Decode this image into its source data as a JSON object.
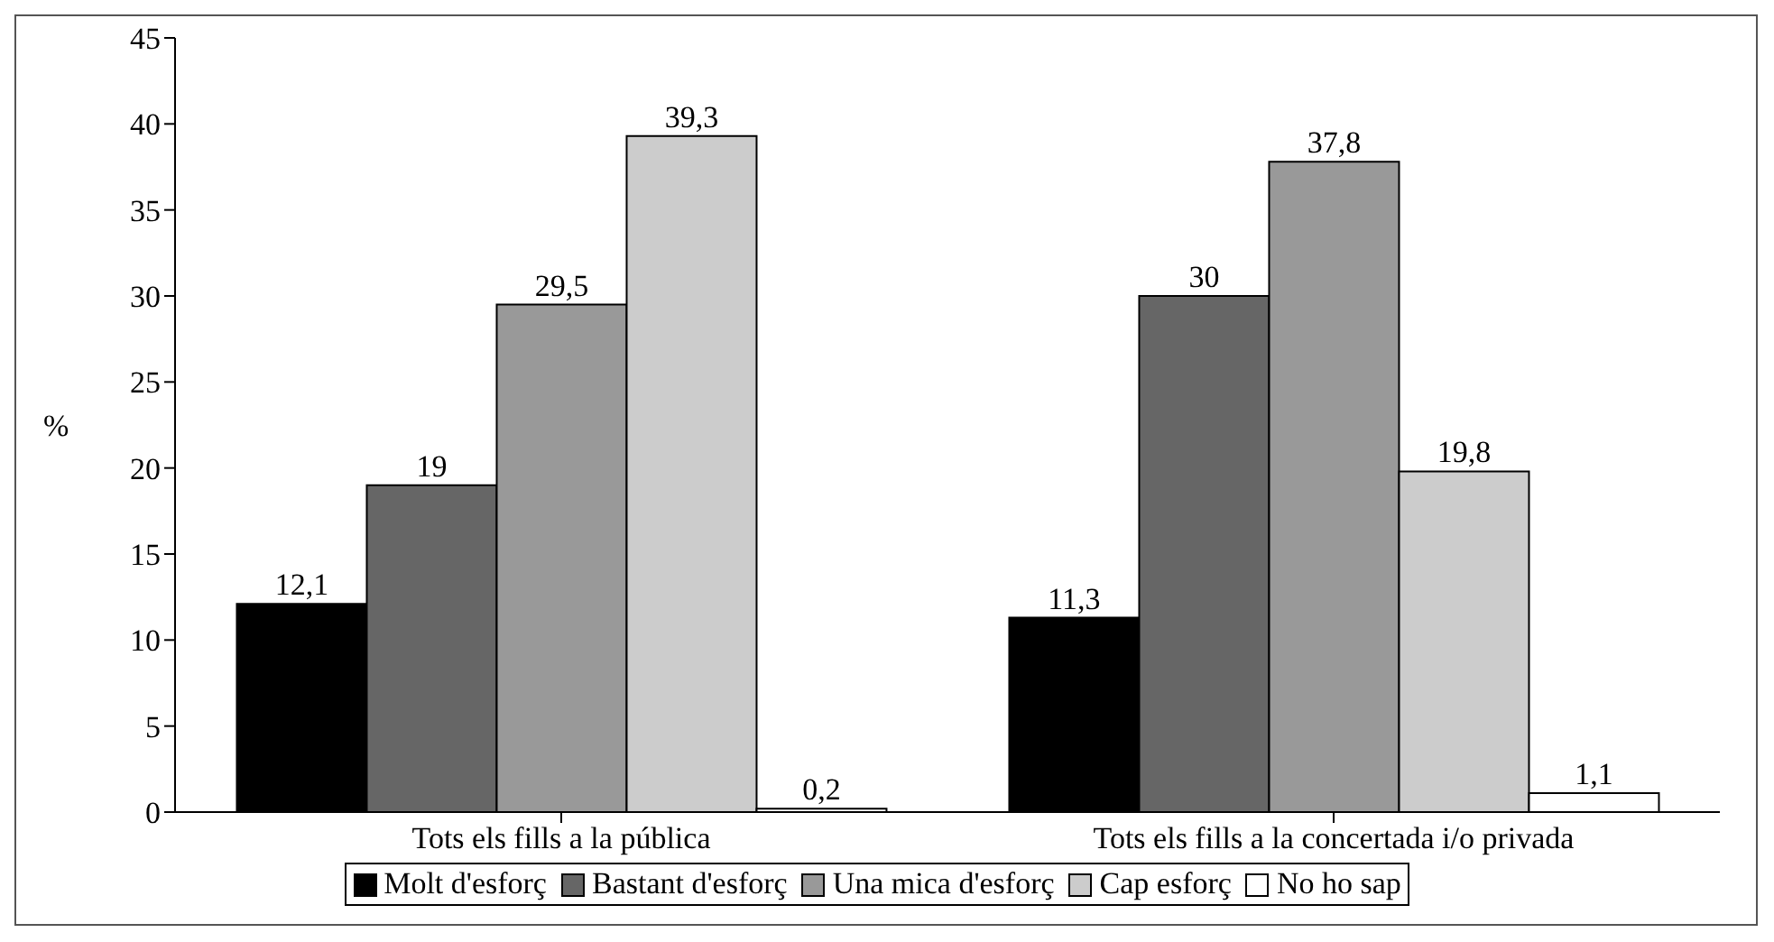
{
  "chart_data": {
    "type": "bar",
    "ylabel": "%",
    "categories": [
      "Tots els fills a la pública",
      "Tots els fills a la concertada i/o privada"
    ],
    "series": [
      {
        "name": "Molt d'esforç",
        "color": "#000000",
        "values": [
          12.1,
          11.3
        ],
        "value_labels": [
          "12,1",
          "11,3"
        ]
      },
      {
        "name": "Bastant d'esforç",
        "color": "#666666",
        "values": [
          19,
          30
        ],
        "value_labels": [
          "19",
          "30"
        ]
      },
      {
        "name": "Una mica d'esforç",
        "color": "#999999",
        "values": [
          29.5,
          37.8
        ],
        "value_labels": [
          "29,5",
          "37,8"
        ]
      },
      {
        "name": "Cap esforç",
        "color": "#cccccc",
        "values": [
          39.3,
          19.8
        ],
        "value_labels": [
          "39,3",
          "19,8"
        ]
      },
      {
        "name": "No ho sap",
        "color": "#ffffff",
        "values": [
          0.2,
          1.1
        ],
        "value_labels": [
          "0,2",
          "1,1"
        ]
      }
    ],
    "ylim": [
      0,
      45
    ],
    "yticks": [
      0,
      5,
      10,
      15,
      20,
      25,
      30,
      35,
      40,
      45
    ],
    "grid": false,
    "legend": "bottom"
  }
}
